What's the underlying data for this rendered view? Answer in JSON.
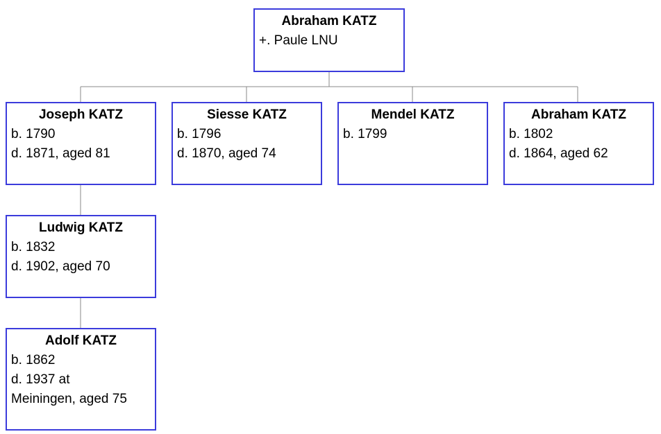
{
  "colors": {
    "box_border": "#3b3bdc",
    "connector": "#8a8a8a"
  },
  "tree": {
    "root": {
      "name": "Abraham KATZ",
      "spouse": "+. Paule LNU"
    },
    "children": [
      {
        "name": "Joseph KATZ",
        "born": "b. 1790",
        "died": "d. 1871, aged 81"
      },
      {
        "name": "Siesse KATZ",
        "born": "b. 1796",
        "died": "d. 1870, aged 74"
      },
      {
        "name": "Mendel KATZ",
        "born": "b. 1799"
      },
      {
        "name": "Abraham KATZ",
        "born": "b. 1802",
        "died": "d. 1864, aged 62"
      }
    ],
    "grandchild": {
      "name": "Ludwig KATZ",
      "born": "b. 1832",
      "died": "d. 1902, aged 70"
    },
    "great_grandchild": {
      "name": "Adolf KATZ",
      "born": "b. 1862",
      "died": "d. 1937 at Meiningen, aged 75"
    }
  }
}
